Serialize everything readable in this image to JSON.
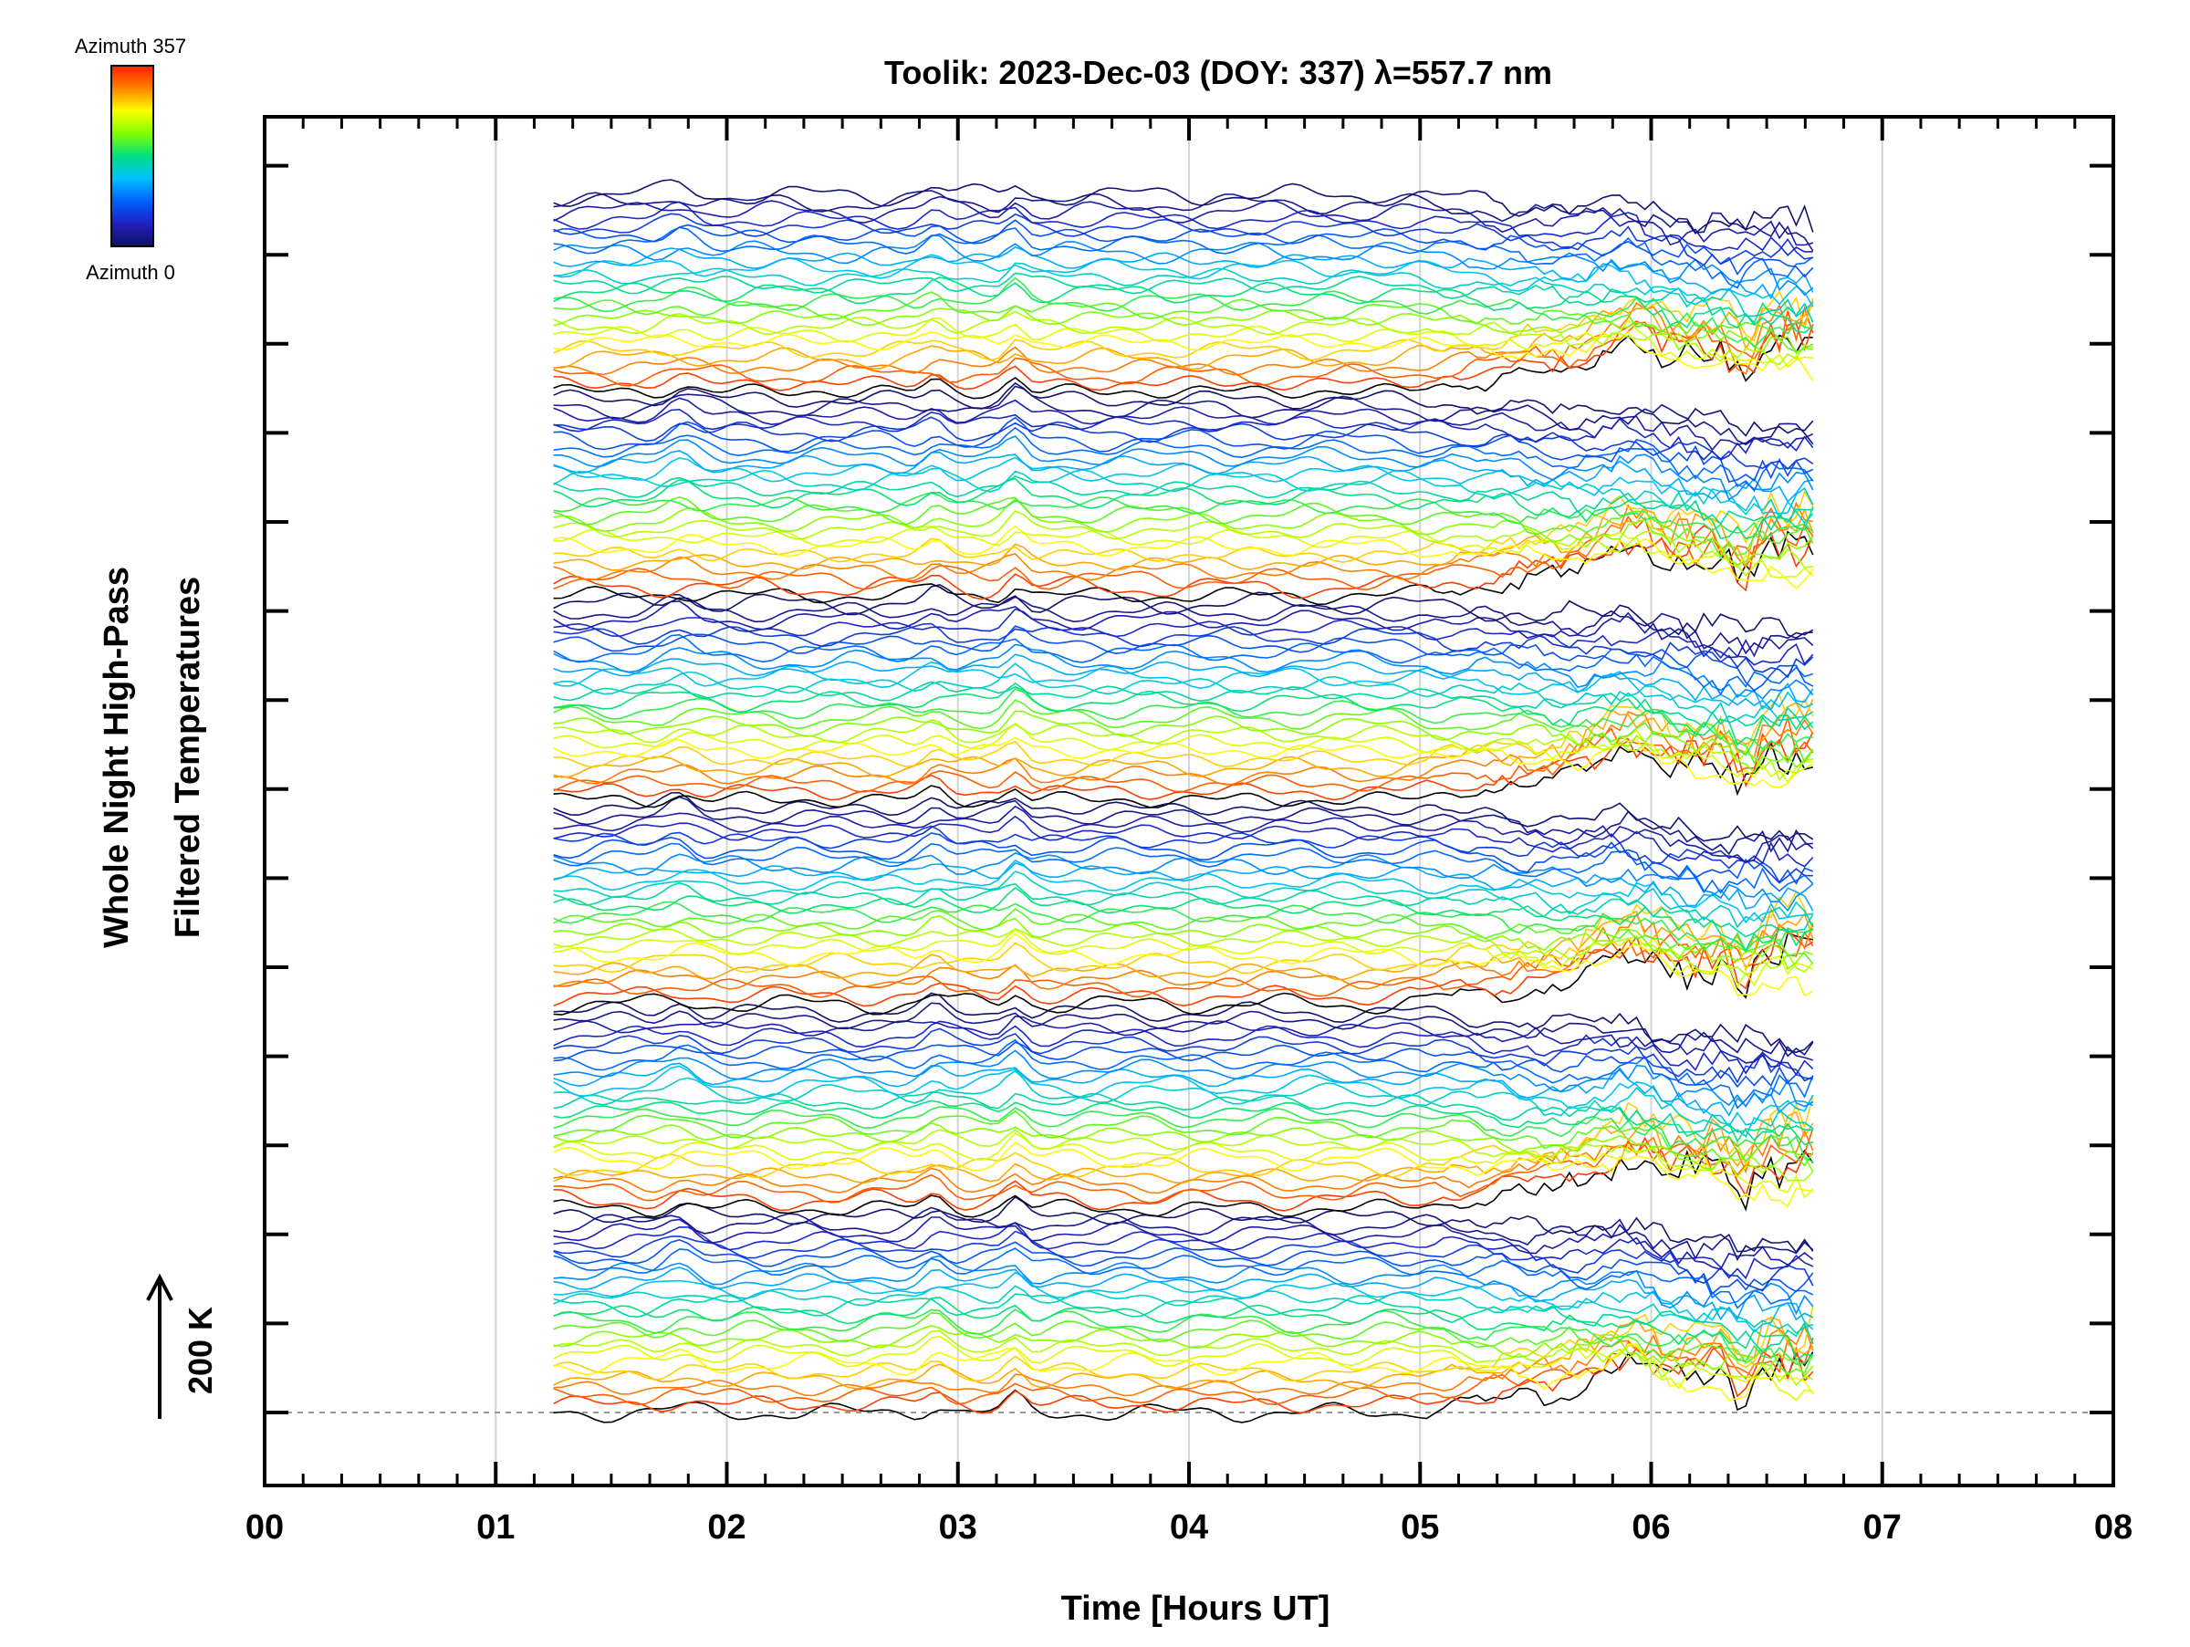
{
  "chart_data": {
    "type": "line",
    "title": "Toolik: 2023-Dec-03 (DOY: 337) λ=557.7 nm",
    "xlabel": "Time [Hours UT]",
    "ylabel_line1": "Whole Night High-Pass",
    "ylabel_line2": "Filtered Temperatures",
    "scale_label": "200 K",
    "x_ticks": [
      "00",
      "01",
      "02",
      "03",
      "04",
      "05",
      "06",
      "07",
      "08"
    ],
    "xlim": [
      0,
      8
    ],
    "data_time_range_hours": [
      1.25,
      6.7
    ],
    "colorbar": {
      "top_label": "Azimuth  357",
      "bottom_label": "Azimuth  0",
      "colors": [
        "#ff2000",
        "#ff8000",
        "#ffff00",
        "#80ff00",
        "#00e080",
        "#00c0ff",
        "#0060ff",
        "#2020c0",
        "#101060"
      ]
    },
    "grid": true,
    "zero_line": "dashed",
    "series_groups": 6,
    "series_per_group_approx": 25
  }
}
